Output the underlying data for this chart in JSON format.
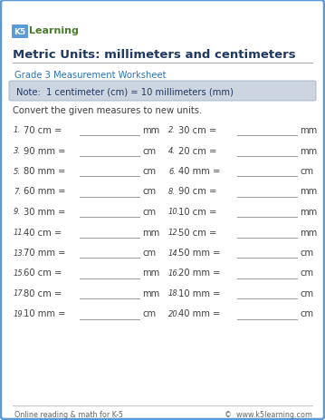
{
  "title": "Metric Units: millimeters and centimeters",
  "subtitle": "Grade 3 Measurement Worksheet",
  "note": "Note:  1 centimeter (cm) = 10 millimeters (mm)",
  "instruction": "Convert the given measures to new units.",
  "problems": [
    {
      "num": "1.",
      "text": "70 cm =",
      "unit": "mm"
    },
    {
      "num": "2.",
      "text": "30 cm =",
      "unit": "mm"
    },
    {
      "num": "3.",
      "text": "90 mm =",
      "unit": "cm"
    },
    {
      "num": "4.",
      "text": "20 cm =",
      "unit": "mm"
    },
    {
      "num": "5.",
      "text": "80 mm =",
      "unit": "cm"
    },
    {
      "num": "6.",
      "text": "40 mm =",
      "unit": "cm"
    },
    {
      "num": "7.",
      "text": "60 mm =",
      "unit": "cm"
    },
    {
      "num": "8.",
      "text": "90 cm =",
      "unit": "mm"
    },
    {
      "num": "9.",
      "text": "30 mm =",
      "unit": "cm"
    },
    {
      "num": "10.",
      "text": "10 cm =",
      "unit": "mm"
    },
    {
      "num": "11.",
      "text": "40 cm =",
      "unit": "mm"
    },
    {
      "num": "12.",
      "text": "50 cm =",
      "unit": "mm"
    },
    {
      "num": "13.",
      "text": "70 mm =",
      "unit": "cm"
    },
    {
      "num": "14.",
      "text": "50 mm =",
      "unit": "cm"
    },
    {
      "num": "15.",
      "text": "60 cm =",
      "unit": "mm"
    },
    {
      "num": "16.",
      "text": "20 mm =",
      "unit": "cm"
    },
    {
      "num": "17.",
      "text": "80 cm =",
      "unit": "mm"
    },
    {
      "num": "18.",
      "text": "10 mm =",
      "unit": "cm"
    },
    {
      "num": "19.",
      "text": "10 mm =",
      "unit": "cm"
    },
    {
      "num": "20.",
      "text": "40 mm =",
      "unit": "cm"
    }
  ],
  "border_color": "#5b9bd5",
  "title_color": "#1f3864",
  "subtitle_color": "#2e74b5",
  "note_bg": "#cdd5e0",
  "note_color": "#1f3864",
  "text_color": "#404040",
  "line_color": "#999999",
  "footer_color": "#666666",
  "footer_left": "Online reading & math for K-5",
  "footer_right": "©  www.k5learning.com",
  "bg_color": "#ffffff",
  "k5_box_color": "#5b9bd5",
  "learning_color": "#4a7c2f"
}
